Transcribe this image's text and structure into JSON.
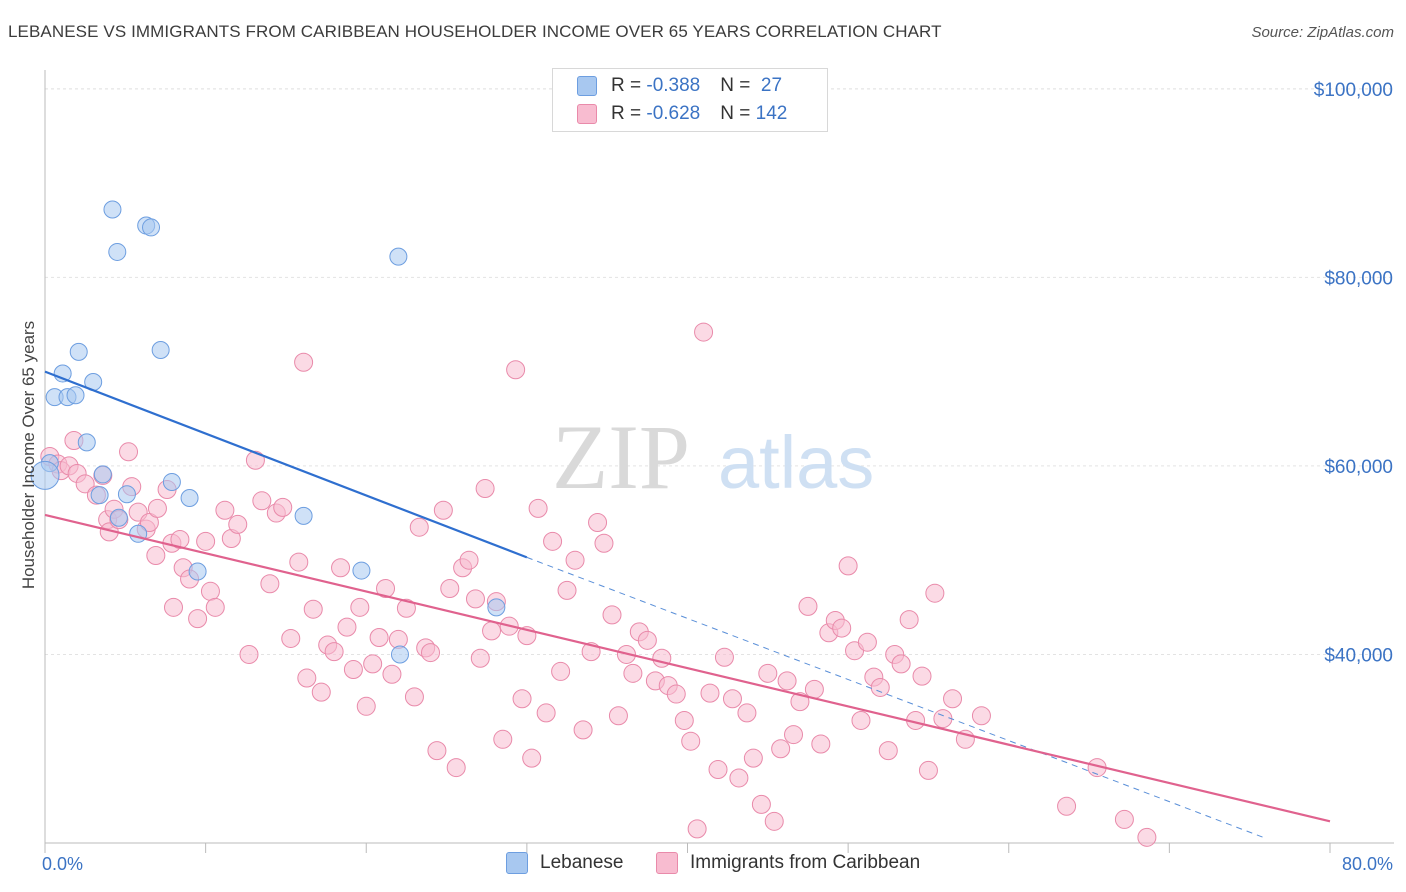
{
  "title": "LEBANESE VS IMMIGRANTS FROM CARIBBEAN HOUSEHOLDER INCOME OVER 65 YEARS CORRELATION CHART",
  "source": "Source: ZipAtlas.com",
  "watermark": {
    "zip": "ZIP",
    "atlas": "atlas"
  },
  "legend": {
    "rows": [
      {
        "r_label": "R = ",
        "r_value": "-0.388",
        "n_label": "N = ",
        "n_value": " 27",
        "color": "#a8c8f0",
        "border": "#6d9ee0"
      },
      {
        "r_label": "R = ",
        "r_value": "-0.628",
        "n_label": "N = ",
        "n_value": "142",
        "color": "#f8bcd0",
        "border": "#e98aaa"
      }
    ]
  },
  "bottom_legend": [
    {
      "label": "Lebanese",
      "color": "#a8c8f0",
      "border": "#6d9ee0"
    },
    {
      "label": "Immigrants from Caribbean",
      "color": "#f8bcd0",
      "border": "#e98aaa"
    }
  ],
  "chart_data": {
    "type": "scatter",
    "title": "LEBANESE VS IMMIGRANTS FROM CARIBBEAN HOUSEHOLDER INCOME OVER 65 YEARS CORRELATION CHART",
    "xlabel": "",
    "ylabel": "Householder Income Over 65 years",
    "xlim": [
      0,
      80
    ],
    "ylim": [
      20000,
      102000
    ],
    "x_tick_labels": [
      "0.0%",
      "80.0%"
    ],
    "y_ticks": [
      40000,
      60000,
      80000,
      100000
    ],
    "y_tick_labels": [
      "$40,000",
      "$60,000",
      "$80,000",
      "$100,000"
    ],
    "grid": true,
    "series": [
      {
        "name": "Lebanese",
        "color": "#a8c8f0",
        "stroke": "#6d9ee0",
        "points": [
          [
            4.2,
            87.2
          ],
          [
            4.5,
            82.7
          ],
          [
            6.3,
            85.5
          ],
          [
            6.6,
            85.3
          ],
          [
            22.0,
            82.2
          ],
          [
            2.1,
            72.1
          ],
          [
            7.2,
            72.3
          ],
          [
            1.1,
            69.8
          ],
          [
            3.0,
            68.9
          ],
          [
            0.6,
            67.3
          ],
          [
            1.4,
            67.3
          ],
          [
            1.9,
            67.5
          ],
          [
            2.6,
            62.5
          ],
          [
            0.3,
            60.3
          ],
          [
            0.0,
            59.0
          ],
          [
            3.6,
            59.1
          ],
          [
            7.9,
            58.3
          ],
          [
            9.0,
            56.6
          ],
          [
            3.4,
            56.9
          ],
          [
            5.1,
            57.0
          ],
          [
            4.6,
            54.5
          ],
          [
            5.8,
            52.8
          ],
          [
            16.1,
            54.7
          ],
          [
            19.7,
            48.9
          ],
          [
            9.5,
            48.8
          ],
          [
            28.1,
            45.0
          ],
          [
            22.1,
            40.0
          ]
        ],
        "trendline": {
          "x0": 0,
          "y0": 70000,
          "x1": 30,
          "y1": 50300,
          "dashed_to_x": 76,
          "dashed_to_y": 20500
        }
      },
      {
        "name": "Immigrants from Caribbean",
        "color": "#f8bcd0",
        "stroke": "#e98aaa",
        "points": [
          [
            0.3,
            61.0
          ],
          [
            0.8,
            60.2
          ],
          [
            1.0,
            59.5
          ],
          [
            1.5,
            60.0
          ],
          [
            1.8,
            62.7
          ],
          [
            2.0,
            59.2
          ],
          [
            2.5,
            58.1
          ],
          [
            3.2,
            56.9
          ],
          [
            3.6,
            59.0
          ],
          [
            3.9,
            54.3
          ],
          [
            4.0,
            53.0
          ],
          [
            4.3,
            55.4
          ],
          [
            4.6,
            54.3
          ],
          [
            5.2,
            61.5
          ],
          [
            5.4,
            57.8
          ],
          [
            5.8,
            55.1
          ],
          [
            6.3,
            53.3
          ],
          [
            6.5,
            54.0
          ],
          [
            6.9,
            50.5
          ],
          [
            7.0,
            55.5
          ],
          [
            7.6,
            57.5
          ],
          [
            7.9,
            51.8
          ],
          [
            8.0,
            45.0
          ],
          [
            8.4,
            52.2
          ],
          [
            8.6,
            49.2
          ],
          [
            9.0,
            48.0
          ],
          [
            9.5,
            43.8
          ],
          [
            10.0,
            52.0
          ],
          [
            10.3,
            46.7
          ],
          [
            10.6,
            45.0
          ],
          [
            11.2,
            55.3
          ],
          [
            11.6,
            52.3
          ],
          [
            12.0,
            53.8
          ],
          [
            12.7,
            40.0
          ],
          [
            13.1,
            60.6
          ],
          [
            13.5,
            56.3
          ],
          [
            14.0,
            47.5
          ],
          [
            14.4,
            55.0
          ],
          [
            14.8,
            55.6
          ],
          [
            15.3,
            41.7
          ],
          [
            15.8,
            49.8
          ],
          [
            16.1,
            71.0
          ],
          [
            16.3,
            37.5
          ],
          [
            16.7,
            44.8
          ],
          [
            17.2,
            36.0
          ],
          [
            17.6,
            41.0
          ],
          [
            18.0,
            40.3
          ],
          [
            18.4,
            49.2
          ],
          [
            18.8,
            42.9
          ],
          [
            19.2,
            38.4
          ],
          [
            19.6,
            45.0
          ],
          [
            20.0,
            34.5
          ],
          [
            20.4,
            39.0
          ],
          [
            20.8,
            41.8
          ],
          [
            21.2,
            47.0
          ],
          [
            21.6,
            37.9
          ],
          [
            22.0,
            41.6
          ],
          [
            22.5,
            44.9
          ],
          [
            23.0,
            35.5
          ],
          [
            23.3,
            53.5
          ],
          [
            23.7,
            40.7
          ],
          [
            24.0,
            40.2
          ],
          [
            24.4,
            29.8
          ],
          [
            24.8,
            55.3
          ],
          [
            25.2,
            47.0
          ],
          [
            25.6,
            28.0
          ],
          [
            26.0,
            49.2
          ],
          [
            26.4,
            50.0
          ],
          [
            26.8,
            45.9
          ],
          [
            27.1,
            39.6
          ],
          [
            27.4,
            57.6
          ],
          [
            27.8,
            42.5
          ],
          [
            28.1,
            45.6
          ],
          [
            28.5,
            31.0
          ],
          [
            28.9,
            43.0
          ],
          [
            29.3,
            70.2
          ],
          [
            29.7,
            35.3
          ],
          [
            30.0,
            42.0
          ],
          [
            30.3,
            29.0
          ],
          [
            30.7,
            55.5
          ],
          [
            31.2,
            33.8
          ],
          [
            31.6,
            52.0
          ],
          [
            32.1,
            38.2
          ],
          [
            32.5,
            46.8
          ],
          [
            33.0,
            50.0
          ],
          [
            33.5,
            32.0
          ],
          [
            34.0,
            40.3
          ],
          [
            34.4,
            54.0
          ],
          [
            34.8,
            51.8
          ],
          [
            35.3,
            44.2
          ],
          [
            35.7,
            33.5
          ],
          [
            36.2,
            40.0
          ],
          [
            36.6,
            38.0
          ],
          [
            37.0,
            42.4
          ],
          [
            37.5,
            41.5
          ],
          [
            38.0,
            37.2
          ],
          [
            38.4,
            39.6
          ],
          [
            38.8,
            36.7
          ],
          [
            39.3,
            35.8
          ],
          [
            39.8,
            33.0
          ],
          [
            40.2,
            30.8
          ],
          [
            40.6,
            21.5
          ],
          [
            41.0,
            74.2
          ],
          [
            41.4,
            35.9
          ],
          [
            41.9,
            27.8
          ],
          [
            42.3,
            39.7
          ],
          [
            42.8,
            35.3
          ],
          [
            43.2,
            26.9
          ],
          [
            43.7,
            33.8
          ],
          [
            44.1,
            29.0
          ],
          [
            44.6,
            24.1
          ],
          [
            45.0,
            38.0
          ],
          [
            45.4,
            22.3
          ],
          [
            45.8,
            30.0
          ],
          [
            46.2,
            37.2
          ],
          [
            46.6,
            31.5
          ],
          [
            47.0,
            35.0
          ],
          [
            47.5,
            45.1
          ],
          [
            47.9,
            36.3
          ],
          [
            48.3,
            30.5
          ],
          [
            48.8,
            42.3
          ],
          [
            49.2,
            43.6
          ],
          [
            49.6,
            42.8
          ],
          [
            50.0,
            49.4
          ],
          [
            50.4,
            40.4
          ],
          [
            50.8,
            33.0
          ],
          [
            51.2,
            41.3
          ],
          [
            51.6,
            37.6
          ],
          [
            52.0,
            36.5
          ],
          [
            52.5,
            29.8
          ],
          [
            52.9,
            40.0
          ],
          [
            53.3,
            39.0
          ],
          [
            53.8,
            43.7
          ],
          [
            54.2,
            33.0
          ],
          [
            54.6,
            37.7
          ],
          [
            55.0,
            27.7
          ],
          [
            55.4,
            46.5
          ],
          [
            55.9,
            33.2
          ],
          [
            56.5,
            35.3
          ],
          [
            57.3,
            31.0
          ],
          [
            58.3,
            33.5
          ],
          [
            63.6,
            23.9
          ],
          [
            65.5,
            28.0
          ],
          [
            67.2,
            22.5
          ],
          [
            68.6,
            20.6
          ]
        ],
        "trendline": {
          "x0": 0,
          "y0": 54800,
          "x1": 80,
          "y1": 22300
        }
      }
    ]
  }
}
